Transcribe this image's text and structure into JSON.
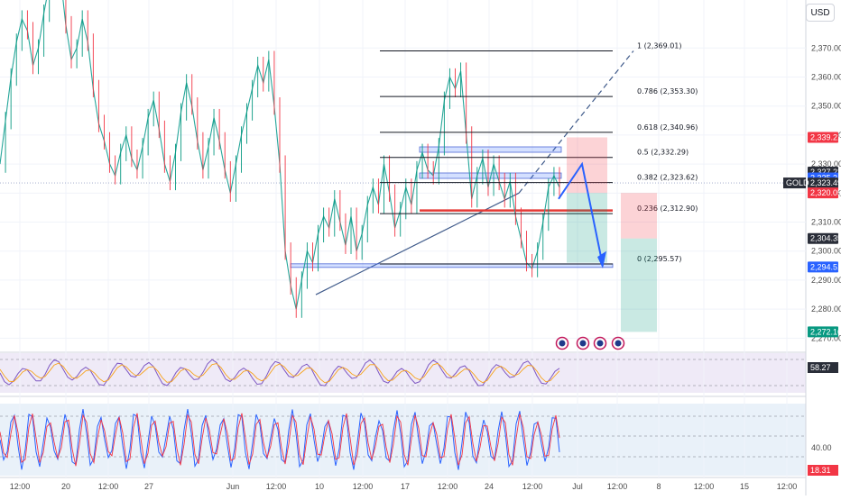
{
  "currency_button": "USD",
  "symbol_tag": "GOLD",
  "price_tags": [
    {
      "value": 2339.21,
      "label": "2,339.21",
      "color": "#f23645"
    },
    {
      "value": 2327.23,
      "label": "2,327.23",
      "color": "#2a2e39"
    },
    {
      "value": 2325.24,
      "label": "2,325.24",
      "color": "#2962ff"
    },
    {
      "value": 2323.49,
      "label": "2,323.49",
      "color": "#2a2e39"
    },
    {
      "value": 2320.05,
      "label": "2,320.05",
      "color": "#f23645"
    },
    {
      "value": 2304.35,
      "label": "2,304.35",
      "color": "#2a2e39"
    },
    {
      "value": 2294.51,
      "label": "2,294.51",
      "color": "#2962ff"
    },
    {
      "value": 2272.16,
      "label": "2,272.16",
      "color": "#089981"
    }
  ],
  "indicator_tags": [
    {
      "label": "58.27",
      "panel": "rsi",
      "color": "#2a2e39"
    },
    {
      "label": "18.31",
      "panel": "stoch",
      "color": "#f23645"
    }
  ],
  "stoch_scale_label": "40.00",
  "time_labels": [
    "12:00",
    "20",
    "12:00",
    "27",
    "Jun",
    "12:00",
    "10",
    "12:00",
    "17",
    "12:00",
    "24",
    "12:00",
    "Jul",
    "12:00",
    "8",
    "12:00",
    "15",
    "12:00"
  ],
  "chart_data": {
    "type": "line",
    "instrument": "GOLD",
    "currency": "USD",
    "y_axis_ticks": [
      2370,
      2360,
      2350,
      2340,
      2330,
      2320,
      2310,
      2300,
      2290,
      2280,
      2270
    ],
    "ylim": [
      2267,
      2385
    ],
    "fibonacci_levels": [
      {
        "ratio": "1",
        "price": 2369.01,
        "label": "1 (2,369.01)"
      },
      {
        "ratio": "0.786",
        "price": 2353.3,
        "label": "0.786 (2,353.30)"
      },
      {
        "ratio": "0.618",
        "price": 2340.96,
        "label": "0.618 (2,340.96)"
      },
      {
        "ratio": "0.5",
        "price": 2332.29,
        "label": "0.5 (2,332.29)"
      },
      {
        "ratio": "0.382",
        "price": 2323.62,
        "label": "0.382 (2,323.62)"
      },
      {
        "ratio": "0.236",
        "price": 2312.9,
        "label": "0.236 (2,312.90)"
      },
      {
        "ratio": "0",
        "price": 2295.57,
        "label": "0 (2,295.57)"
      }
    ],
    "current_price": 2323.49,
    "support_level": 2314.0,
    "position_entry": 2320.05,
    "position_stop": 2339.21,
    "position_target": 2272.16,
    "price_series": [
      2330,
      2345,
      2360,
      2372,
      2380,
      2376,
      2364,
      2370,
      2382,
      2392,
      2400,
      2395,
      2378,
      2366,
      2370,
      2380,
      2372,
      2356,
      2344,
      2338,
      2330,
      2326,
      2334,
      2340,
      2332,
      2328,
      2336,
      2346,
      2352,
      2342,
      2330,
      2324,
      2334,
      2348,
      2358,
      2350,
      2338,
      2328,
      2336,
      2346,
      2338,
      2328,
      2320,
      2330,
      2340,
      2348,
      2356,
      2364,
      2358,
      2366,
      2350,
      2330,
      2300,
      2288,
      2280,
      2290,
      2300,
      2296,
      2306,
      2312,
      2308,
      2318,
      2310,
      2302,
      2312,
      2300,
      2306,
      2316,
      2322,
      2316,
      2330,
      2320,
      2308,
      2314,
      2322,
      2316,
      2328,
      2334,
      2328,
      2326,
      2336,
      2352,
      2360,
      2356,
      2362,
      2340,
      2318,
      2326,
      2332,
      2322,
      2330,
      2324,
      2318,
      2324,
      2312,
      2304,
      2296,
      2294,
      2300,
      2310,
      2322,
      2326,
      2322
    ],
    "rsi": {
      "value": 58.27
    },
    "stochastic": {
      "value": 18.31
    }
  }
}
